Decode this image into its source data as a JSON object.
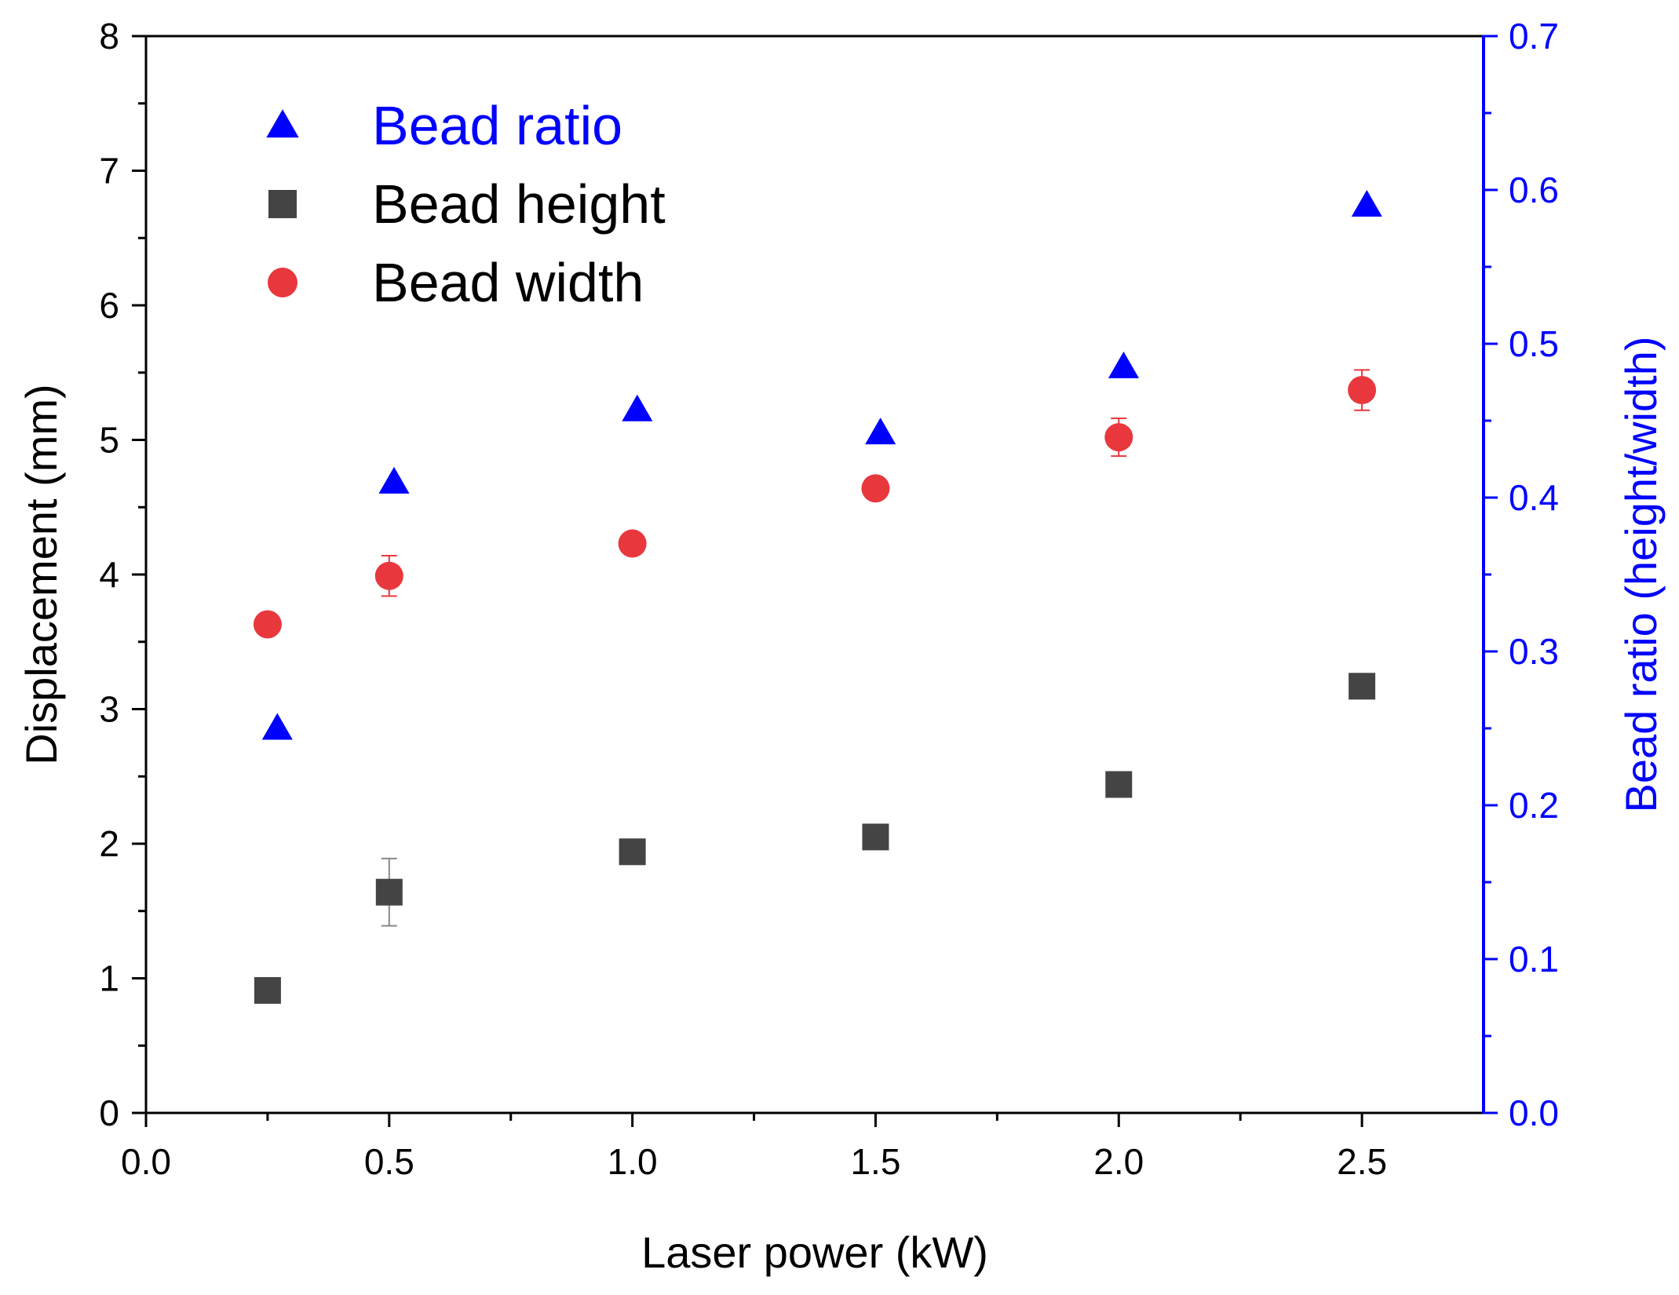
{
  "chart_data": {
    "type": "scatter",
    "title": "",
    "xlabel": "Laser power (kW)",
    "ylabel": "Displacement (mm)",
    "y2label": "Bead ratio (height/width)",
    "xlim": [
      0.0,
      2.75
    ],
    "ylim": [
      0,
      8
    ],
    "y2lim": [
      0.0,
      0.7
    ],
    "xticks": [
      0.0,
      0.5,
      1.0,
      1.5,
      2.0,
      2.5
    ],
    "xtick_labels": [
      "0.0",
      "0.5",
      "1.0",
      "1.5",
      "2.0",
      "2.5"
    ],
    "yticks": [
      0,
      1,
      2,
      3,
      4,
      5,
      6,
      7,
      8
    ],
    "ytick_labels": [
      "0",
      "1",
      "2",
      "3",
      "4",
      "5",
      "6",
      "7",
      "8"
    ],
    "y2ticks": [
      0.0,
      0.1,
      0.2,
      0.3,
      0.4,
      0.5,
      0.6,
      0.7
    ],
    "y2tick_labels": [
      "0.0",
      "0.1",
      "0.2",
      "0.3",
      "0.4",
      "0.5",
      "0.6",
      "0.7"
    ],
    "legend_position": "top-left",
    "grid": false,
    "series": [
      {
        "name": "Bead ratio",
        "axis": "right",
        "marker": "triangle",
        "color": "#0000ff",
        "x": [
          0.27,
          0.51,
          1.01,
          1.51,
          2.01,
          2.51
        ],
        "values": [
          0.25,
          0.41,
          0.457,
          0.442,
          0.485,
          0.59
        ],
        "errors": [
          0,
          0,
          0,
          0,
          0,
          0
        ]
      },
      {
        "name": "Bead height",
        "axis": "left",
        "marker": "square",
        "color": "#444444",
        "x": [
          0.25,
          0.5,
          1.0,
          1.5,
          2.0,
          2.5
        ],
        "values": [
          0.91,
          1.64,
          1.94,
          2.05,
          2.44,
          3.17
        ],
        "errors": [
          0,
          0.25,
          0,
          0,
          0,
          0
        ]
      },
      {
        "name": "Bead width",
        "axis": "left",
        "marker": "circle",
        "color": "#e8383d",
        "x": [
          0.25,
          0.5,
          1.0,
          1.5,
          2.0,
          2.5
        ],
        "values": [
          3.63,
          3.99,
          4.23,
          4.64,
          5.02,
          5.37
        ],
        "errors": [
          0,
          0.15,
          0,
          0,
          0.14,
          0.15
        ]
      }
    ],
    "colors": {
      "axis": "#000000",
      "right_axis": "#0000ff",
      "error_bar": "#888888",
      "error_bar_width": "#e8383d"
    }
  }
}
